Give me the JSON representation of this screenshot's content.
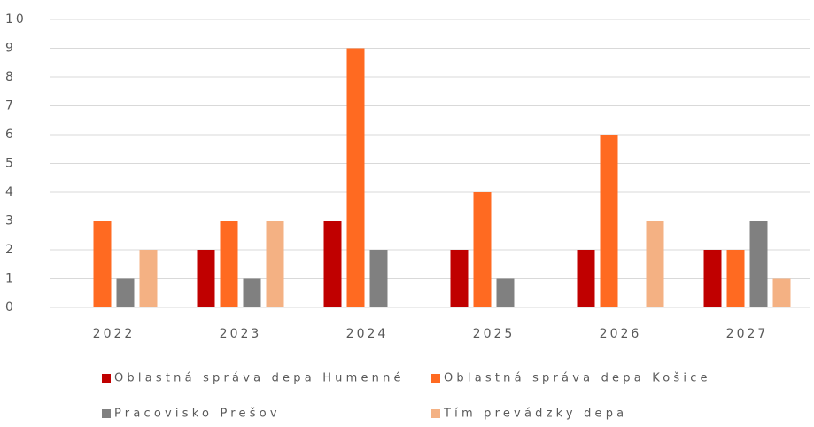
{
  "chart_data": {
    "type": "bar",
    "categories": [
      "2022",
      "2023",
      "2024",
      "2025",
      "2026",
      "2027"
    ],
    "series": [
      {
        "name": "Oblastná správa depa Humenné",
        "color": "#c00000",
        "values": [
          0,
          2,
          3,
          2,
          2,
          2
        ]
      },
      {
        "name": "Oblastná správa depa Košice",
        "color": "#ff6a21",
        "values": [
          3,
          3,
          9,
          4,
          6,
          2
        ]
      },
      {
        "name": "Pracovisko Prešov",
        "color": "#808080",
        "values": [
          1,
          1,
          2,
          1,
          0,
          3
        ]
      },
      {
        "name": "Tím prevádzky depa",
        "color": "#f4b183",
        "values": [
          2,
          3,
          0,
          0,
          3,
          1
        ]
      }
    ],
    "ylim": [
      0,
      10
    ],
    "yticks": [
      0,
      1,
      2,
      3,
      4,
      5,
      6,
      7,
      8,
      9,
      10
    ],
    "grid": true,
    "legend": "bottom"
  }
}
